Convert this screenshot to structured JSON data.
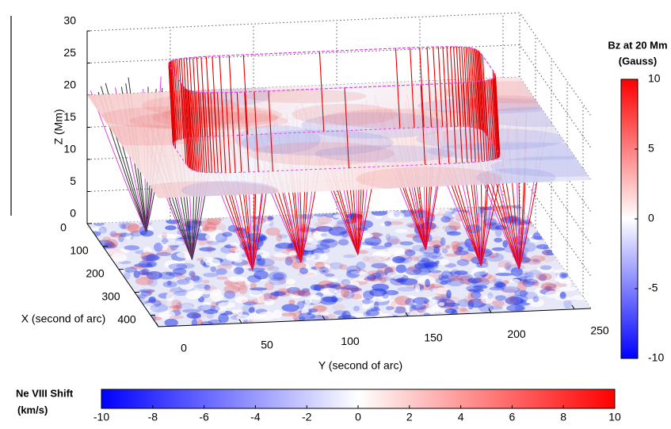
{
  "chart_data": {
    "type": "surface3d",
    "xlabel": "X (second of arc)",
    "ylabel": "Y (second of arc)",
    "zlabel": "Z (Mm)",
    "xlim": [
      0,
      450
    ],
    "xticks": [
      0,
      100,
      200,
      300,
      400
    ],
    "ylim": [
      0,
      260
    ],
    "yticks": [
      0,
      50,
      100,
      150,
      200,
      250
    ],
    "zlim": [
      0,
      30
    ],
    "zticks": [
      0,
      5,
      10,
      15,
      20,
      25,
      30
    ],
    "slice_z": 20,
    "colorbars": [
      {
        "title": [
          "Bz at 20 Mm",
          "(Gauss)"
        ],
        "orientation": "vertical",
        "clim": [
          -10,
          10
        ],
        "ticks": [
          -10,
          -5,
          0,
          5,
          10
        ],
        "colors": [
          "#0000ff",
          "#ffffff",
          "#ff0000"
        ]
      },
      {
        "title": [
          "Ne VIII Shift",
          "(km/s)"
        ],
        "orientation": "horizontal",
        "clim": [
          -10,
          10
        ],
        "ticks": [
          -10,
          -8,
          -6,
          -4,
          -2,
          0,
          2,
          4,
          6,
          8,
          10
        ],
        "colors": [
          "#0000ff",
          "#ffffff",
          "#ff0000"
        ]
      }
    ]
  }
}
